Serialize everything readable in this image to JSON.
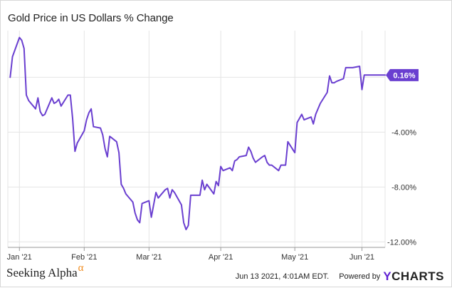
{
  "chart_data": {
    "type": "line",
    "title": "Gold Price in US Dollars % Change",
    "y_unit": "%",
    "ylim": [
      -12.4,
      3.4
    ],
    "y_ticks": [
      {
        "value": 0,
        "label": ""
      },
      {
        "value": -4,
        "label": "-4.00%"
      },
      {
        "value": -8,
        "label": "-8.00%"
      },
      {
        "value": -12,
        "label": "-12.00%"
      }
    ],
    "x_range": [
      "2020-12-30",
      "2021-06-11"
    ],
    "x_ticks": [
      {
        "date": "2021-01-04",
        "label": "Jan '21"
      },
      {
        "date": "2021-02-01",
        "label": "Feb '21"
      },
      {
        "date": "2021-03-01",
        "label": "Mar '21"
      },
      {
        "date": "2021-04-01",
        "label": "Apr '21"
      },
      {
        "date": "2021-05-03",
        "label": "May '21"
      },
      {
        "date": "2021-06-01",
        "label": "Jun '21"
      }
    ],
    "grid": true,
    "line_color": "#6a3fd0",
    "series": [
      {
        "x": [
          "2020-12-31",
          "2021-01-01",
          "2021-01-04",
          "2021-01-05",
          "2021-01-06",
          "2021-01-07",
          "2021-01-08",
          "2021-01-11",
          "2021-01-12",
          "2021-01-13",
          "2021-01-14",
          "2021-01-15",
          "2021-01-18",
          "2021-01-19",
          "2021-01-20",
          "2021-01-21",
          "2021-01-22",
          "2021-01-25",
          "2021-01-26",
          "2021-01-27",
          "2021-01-28",
          "2021-01-29",
          "2021-02-01",
          "2021-02-02",
          "2021-02-03",
          "2021-02-04",
          "2021-02-05",
          "2021-02-08",
          "2021-02-09",
          "2021-02-10",
          "2021-02-11",
          "2021-02-12",
          "2021-02-15",
          "2021-02-16",
          "2021-02-17",
          "2021-02-18",
          "2021-02-19",
          "2021-02-22",
          "2021-02-23",
          "2021-02-24",
          "2021-02-25",
          "2021-02-26",
          "2021-03-01",
          "2021-03-02",
          "2021-03-03",
          "2021-03-04",
          "2021-03-05",
          "2021-03-08",
          "2021-03-09",
          "2021-03-10",
          "2021-03-11",
          "2021-03-12",
          "2021-03-15",
          "2021-03-16",
          "2021-03-17",
          "2021-03-18",
          "2021-03-19",
          "2021-03-22",
          "2021-03-23",
          "2021-03-24",
          "2021-03-25",
          "2021-03-26",
          "2021-03-29",
          "2021-03-30",
          "2021-03-31",
          "2021-04-01",
          "2021-04-02",
          "2021-04-05",
          "2021-04-06",
          "2021-04-07",
          "2021-04-08",
          "2021-04-09",
          "2021-04-12",
          "2021-04-13",
          "2021-04-14",
          "2021-04-15",
          "2021-04-16",
          "2021-04-19",
          "2021-04-20",
          "2021-04-21",
          "2021-04-22",
          "2021-04-23",
          "2021-04-26",
          "2021-04-27",
          "2021-04-28",
          "2021-04-29",
          "2021-04-30",
          "2021-05-03",
          "2021-05-04",
          "2021-05-05",
          "2021-05-06",
          "2021-05-07",
          "2021-05-10",
          "2021-05-11",
          "2021-05-12",
          "2021-05-13",
          "2021-05-14",
          "2021-05-17",
          "2021-05-18",
          "2021-05-19",
          "2021-05-20",
          "2021-05-21",
          "2021-05-24",
          "2021-05-25",
          "2021-05-26",
          "2021-05-27",
          "2021-05-28",
          "2021-05-31",
          "2021-06-01",
          "2021-06-02",
          "2021-06-03",
          "2021-06-04",
          "2021-06-07",
          "2021-06-08",
          "2021-06-09",
          "2021-06-10",
          "2021-06-11"
        ],
        "y": [
          0.0,
          1.5,
          2.9,
          2.7,
          2.1,
          -1.3,
          -1.7,
          -2.3,
          -1.5,
          -2.5,
          -2.8,
          -2.7,
          -1.5,
          -1.9,
          -1.8,
          -1.6,
          -2.1,
          -1.3,
          -1.3,
          -3.0,
          -5.4,
          -4.8,
          -3.9,
          -3.1,
          -2.6,
          -2.3,
          -3.6,
          -3.7,
          -4.2,
          -5.2,
          -5.8,
          -4.3,
          -4.7,
          -5.5,
          -7.8,
          -8.1,
          -8.5,
          -9.1,
          -9.9,
          -10.4,
          -10.6,
          -9.2,
          -9.0,
          -10.2,
          -9.3,
          -8.4,
          -8.8,
          -8.2,
          -8.1,
          -8.8,
          -8.2,
          -8.4,
          -9.3,
          -10.6,
          -11.1,
          -10.8,
          -8.6,
          -8.6,
          -8.6,
          -7.5,
          -8.2,
          -7.8,
          -8.5,
          -7.6,
          -7.9,
          -6.5,
          -6.8,
          -6.6,
          -6.8,
          -6.1,
          -6.0,
          -5.8,
          -5.7,
          -5.1,
          -5.4,
          -5.9,
          -6.2,
          -5.8,
          -5.7,
          -6.2,
          -6.4,
          -6.4,
          -6.8,
          -6.4,
          -6.4,
          -6.4,
          -4.7,
          -5.5,
          -3.3,
          -3.0,
          -2.7,
          -3.1,
          -2.9,
          -3.4,
          -2.7,
          -2.3,
          -1.9,
          -1.1,
          0.1,
          -0.4,
          -0.4,
          -0.3,
          -0.1,
          0.7,
          0.7,
          0.7,
          0.7,
          0.8,
          -0.9,
          0.16,
          0.16,
          0.16,
          0.16,
          0.16,
          0.16,
          0.16,
          0.16
        ]
      }
    ],
    "last_value_label": "0.16%"
  },
  "footer": {
    "brand": "Seeking Alpha",
    "brand_mark": "α",
    "timestamp": "Jun 13 2021, 4:01AM EDT.",
    "powered_by": "Powered by",
    "ycharts_y": "Y",
    "ycharts_rest": "CHARTS"
  }
}
